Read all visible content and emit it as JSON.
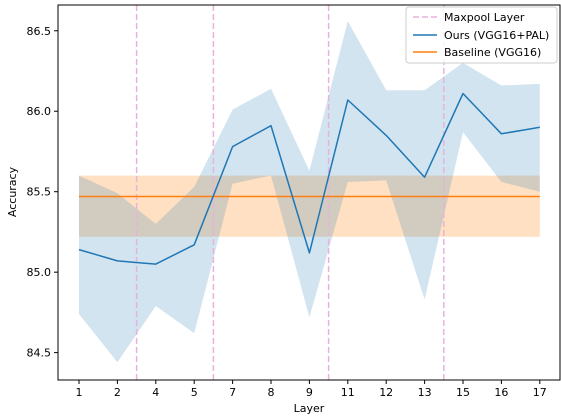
{
  "chart_data": {
    "type": "line",
    "xlabel": "Layer",
    "ylabel": "Accuracy",
    "x_tick_labels": [
      "1",
      "2",
      "4",
      "5",
      "7",
      "8",
      "9",
      "11",
      "12",
      "13",
      "15",
      "16",
      "17"
    ],
    "y_ticks": [
      84.5,
      85.0,
      85.5,
      86.0,
      86.5
    ],
    "y_tick_labels": [
      "84.5",
      "85.0",
      "85.5",
      "86.0",
      "86.5"
    ],
    "ylim": [
      84.33,
      86.66
    ],
    "grid": false,
    "legend_position": "top-right",
    "maxpool_layer": {
      "name": "Maxpool Layer",
      "positions_between": [
        [
          2,
          4
        ],
        [
          5,
          7
        ],
        [
          9,
          11
        ],
        [
          13,
          15
        ]
      ],
      "color": "#e6b3dc"
    },
    "series": [
      {
        "name": "Ours (VGG16+PAL)",
        "color": "#1f77b4",
        "band_color": "#1f77b4",
        "values": [
          85.14,
          85.07,
          85.05,
          85.17,
          85.78,
          85.91,
          85.12,
          86.07,
          85.85,
          85.59,
          86.11,
          85.86,
          85.9
        ],
        "upper": [
          85.6,
          85.49,
          85.3,
          85.53,
          86.01,
          86.14,
          85.63,
          86.56,
          86.13,
          86.13,
          86.3,
          86.16,
          86.17
        ],
        "lower": [
          84.74,
          84.44,
          84.79,
          84.62,
          85.55,
          85.6,
          84.72,
          85.56,
          85.57,
          84.83,
          85.87,
          85.56,
          85.5
        ]
      },
      {
        "name": "Baseline (VGG16)",
        "color": "#ff7f0e",
        "band_color": "#ffbb78",
        "values": [
          85.47,
          85.47,
          85.47,
          85.47,
          85.47,
          85.47,
          85.47,
          85.47,
          85.47,
          85.47,
          85.47,
          85.47,
          85.47
        ],
        "upper": [
          85.6,
          85.6,
          85.6,
          85.6,
          85.6,
          85.6,
          85.6,
          85.6,
          85.6,
          85.6,
          85.6,
          85.6,
          85.6
        ],
        "lower": [
          85.22,
          85.22,
          85.22,
          85.22,
          85.22,
          85.22,
          85.22,
          85.22,
          85.22,
          85.22,
          85.22,
          85.22,
          85.22
        ]
      }
    ]
  }
}
